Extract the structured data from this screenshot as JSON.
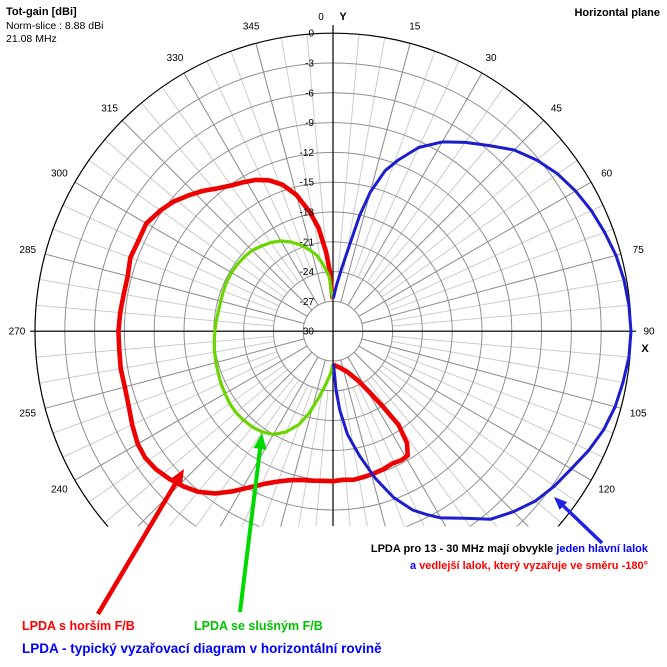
{
  "header": {
    "title": "Tot-gain [dBi]",
    "norm_slice": "Norm-slice : 8.88 dBi",
    "frequency": "21.08 MHz",
    "plane": "Horizontal plane"
  },
  "colors": {
    "red": "#ee0000",
    "green_curve": "#6cd600",
    "green_arrow": "#00d900",
    "green_text": "#00c300",
    "blue_curve": "#1d1dce",
    "blue_arrow": "#2222e6",
    "blue_text": "#0000ff",
    "note_red": "#ff0000",
    "grid_dark": "#8a8a8a",
    "grid_ring": "#909090",
    "grid_light": "#cccccc",
    "axis": "#000000"
  },
  "chart_data": {
    "type": "polar-radiation-pattern",
    "title": "Tot-gain [dBi]",
    "norm_slice_dbi": 8.88,
    "frequency_mhz": 21.08,
    "plane": "Horizontal plane",
    "db_rings": [
      "0",
      "-3",
      "-6",
      "-9",
      "-12",
      "-15",
      "-18",
      "-21",
      "-24",
      "-27",
      "30"
    ],
    "db_min": -30,
    "db_max": 0,
    "ring_step_db": 3,
    "angle_step_labels_deg": 15,
    "grid_minor_step_deg": 5,
    "angle_labels": [
      "15",
      "30",
      "45",
      "60",
      "75",
      "90",
      "105",
      "120",
      "240",
      "255",
      "270",
      "285",
      "300",
      "315",
      "330",
      "345"
    ],
    "zero_label": "0",
    "axis_y_label": "Y",
    "axis_x_label": "X",
    "series": [
      {
        "name": "LPDA s horším F/B",
        "color_key": "red",
        "width": 4.6,
        "points": [
          [
            359,
            -26.6
          ],
          [
            357,
            -24
          ],
          [
            355,
            -22
          ],
          [
            352,
            -19.5
          ],
          [
            349,
            -17.8
          ],
          [
            345,
            -15.8
          ],
          [
            341,
            -14.4
          ],
          [
            337,
            -13.5
          ],
          [
            333,
            -12.9
          ],
          [
            329,
            -12.5
          ],
          [
            325,
            -12.1
          ],
          [
            321,
            -11.5
          ],
          [
            317,
            -10.7
          ],
          [
            313,
            -10
          ],
          [
            309,
            -9.3
          ],
          [
            305,
            -8.8
          ],
          [
            300,
            -8.3
          ],
          [
            295,
            -8.4
          ],
          [
            290,
            -8.3
          ],
          [
            285,
            -8.6
          ],
          [
            280,
            -8.6
          ],
          [
            275,
            -8.5
          ],
          [
            270,
            -8.4
          ],
          [
            265,
            -8.4
          ],
          [
            260,
            -8.3
          ],
          [
            255,
            -8.3
          ],
          [
            250,
            -8.1
          ],
          [
            245,
            -7.7
          ],
          [
            240,
            -7.3
          ],
          [
            236,
            -7.2
          ],
          [
            232,
            -7.4
          ],
          [
            228,
            -7.8
          ],
          [
            224,
            -8.3
          ],
          [
            220,
            -8.9
          ],
          [
            216,
            -9.8
          ],
          [
            212,
            -11
          ],
          [
            208,
            -12.2
          ],
          [
            204,
            -13.2
          ],
          [
            200,
            -13.9
          ],
          [
            196,
            -14.4
          ],
          [
            192,
            -14.7
          ],
          [
            188,
            -14.8
          ],
          [
            184,
            -14.9
          ],
          [
            180,
            -14.9
          ],
          [
            176,
            -15
          ],
          [
            172,
            -14.9
          ],
          [
            168,
            -15
          ],
          [
            164,
            -15.1
          ],
          [
            160,
            -15.2
          ],
          [
            156,
            -15.4
          ],
          [
            152,
            -15.3
          ],
          [
            149,
            -15.4
          ],
          [
            146.5,
            -16.5
          ],
          [
            145,
            -18.5
          ],
          [
            146.5,
            -20.9
          ],
          [
            149,
            -22.8
          ],
          [
            153,
            -24.4
          ],
          [
            160,
            -25.6
          ],
          [
            170,
            -26.3
          ],
          [
            179,
            -26.6
          ]
        ]
      },
      {
        "name": "LPDA se slušným F/B",
        "color_key": "green_curve",
        "width": 3.2,
        "points": [
          [
            359,
            -26.6
          ],
          [
            356,
            -24.5
          ],
          [
            352,
            -23.3
          ],
          [
            348,
            -22.2
          ],
          [
            344,
            -21.5
          ],
          [
            340,
            -20.8
          ],
          [
            335,
            -20.1
          ],
          [
            330,
            -19.5
          ],
          [
            325,
            -19.1
          ],
          [
            320,
            -18.8
          ],
          [
            315,
            -18.5
          ],
          [
            310,
            -18.35
          ],
          [
            305,
            -18.25
          ],
          [
            300,
            -18.2
          ],
          [
            295,
            -18.2
          ],
          [
            290,
            -18.25
          ],
          [
            285,
            -18.3
          ],
          [
            280,
            -18.3
          ],
          [
            275,
            -18.2
          ],
          [
            270,
            -18.1
          ],
          [
            265,
            -18
          ],
          [
            260,
            -17.9
          ],
          [
            255,
            -17.8
          ],
          [
            250,
            -17.7
          ],
          [
            245,
            -17.55
          ],
          [
            240,
            -17.45
          ],
          [
            235,
            -17.3
          ],
          [
            230,
            -17.25
          ],
          [
            225,
            -17.3
          ],
          [
            220,
            -17.4
          ],
          [
            215,
            -17.6
          ],
          [
            210,
            -18
          ],
          [
            205,
            -18.8
          ],
          [
            200,
            -20
          ],
          [
            196,
            -21.5
          ],
          [
            192,
            -23.2
          ],
          [
            187,
            -24.8
          ],
          [
            183,
            -25.8
          ],
          [
            180.5,
            -26.6
          ]
        ]
      },
      {
        "name": "LPDA - typický vyzařovací diagram v horizontální rovině",
        "color_key": "blue_curve",
        "width": 3,
        "points": [
          [
            1,
            -26.6
          ],
          [
            4,
            -25.5
          ],
          [
            8,
            -23.5
          ],
          [
            11,
            -21
          ],
          [
            13,
            -18
          ],
          [
            15,
            -15.5
          ],
          [
            18,
            -13
          ],
          [
            21,
            -11.5
          ],
          [
            25,
            -9.6
          ],
          [
            30,
            -8
          ],
          [
            35,
            -6.8
          ],
          [
            40,
            -5.6
          ],
          [
            45,
            -4.2
          ],
          [
            50,
            -3.2
          ],
          [
            55,
            -2.4
          ],
          [
            60,
            -1.8
          ],
          [
            65,
            -1.3
          ],
          [
            70,
            -0.9
          ],
          [
            75,
            -0.5
          ],
          [
            80,
            -0.25
          ],
          [
            85,
            -0.1
          ],
          [
            90,
            0
          ],
          [
            95,
            -0.1
          ],
          [
            100,
            -0.35
          ],
          [
            105,
            -0.6
          ],
          [
            110,
            -1
          ],
          [
            115,
            -1.6
          ],
          [
            120,
            -2.3
          ],
          [
            125,
            -2.8
          ],
          [
            130,
            -3.4
          ],
          [
            135,
            -4.3
          ],
          [
            140,
            -5.3
          ],
          [
            145,
            -7
          ],
          [
            150,
            -8.3
          ],
          [
            153,
            -9.3
          ],
          [
            156,
            -10.3
          ],
          [
            160,
            -12.2
          ],
          [
            164,
            -14.6
          ],
          [
            168,
            -17.2
          ],
          [
            172,
            -19.5
          ],
          [
            175,
            -22
          ],
          [
            177,
            -24
          ],
          [
            179,
            -26.6
          ]
        ]
      }
    ]
  },
  "annotations": {
    "note1_black": "LPDA pro 13 - 30 MHz mají obvykle ",
    "note1_blue": "jeden hlavní lalok",
    "note2_blue": "a ",
    "note2_red": "vedlejší lalok, který vyzařuje ve směru -180°",
    "label_red": "LPDA s horším F/B",
    "label_green": "LPDA se slušným F/B",
    "label_blue": "LPDA - typický vyzařovací diagram v horizontální rovině",
    "arrows": [
      {
        "name": "red-arrow",
        "color_key": "red",
        "from": [
          98,
          614
        ],
        "to": [
          184,
          469
        ],
        "width": 4.5,
        "head": 17
      },
      {
        "name": "green-arrow",
        "color_key": "green_arrow",
        "from": [
          240,
          612
        ],
        "to": [
          262,
          433
        ],
        "width": 4,
        "head": 16
      },
      {
        "name": "blue-arrow",
        "color_key": "blue_arrow",
        "from": [
          602,
          543
        ],
        "to": [
          554,
          497
        ],
        "width": 3.5,
        "head": 13
      }
    ]
  }
}
